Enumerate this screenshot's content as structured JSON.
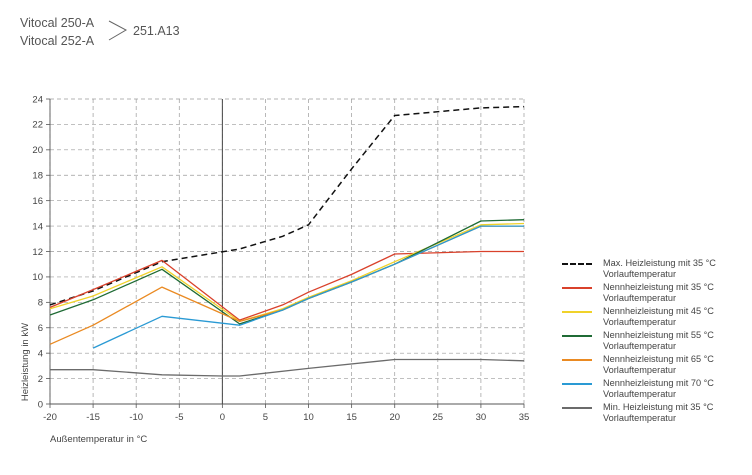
{
  "header": {
    "model_1": "Vitocal 250-A",
    "model_2": "Vitocal 252-A",
    "model_code": "251.A13"
  },
  "chart_data": {
    "type": "line",
    "title": "",
    "xlabel": "Außentemperatur in °C",
    "ylabel": "Heizleistung in kW",
    "xlim": [
      -20,
      35
    ],
    "ylim": [
      0,
      24
    ],
    "x_ticks": [
      -20,
      -15,
      -10,
      -5,
      0,
      5,
      10,
      15,
      20,
      25,
      30,
      35
    ],
    "y_ticks": [
      0,
      2,
      4,
      6,
      8,
      10,
      12,
      14,
      16,
      18,
      20,
      22,
      24
    ],
    "grid": true,
    "legend_position": "right",
    "series": [
      {
        "name": "Max. Heizleistung mit 35 °C Vorlauftemperatur",
        "color": "#111111",
        "style": "dashed",
        "points": [
          [
            -20,
            7.8
          ],
          [
            -15,
            8.9
          ],
          [
            -7,
            11.2
          ],
          [
            2,
            12.2
          ],
          [
            7,
            13.2
          ],
          [
            10,
            14.1
          ],
          [
            15,
            18.5
          ],
          [
            20,
            22.7
          ],
          [
            30,
            23.3
          ],
          [
            35,
            23.4
          ]
        ]
      },
      {
        "name": "Nennheizleistung mit 35 °C Vorlauftemperatur",
        "color": "#d9412b",
        "style": "solid",
        "points": [
          [
            -20,
            7.6
          ],
          [
            -15,
            9.0
          ],
          [
            -7,
            11.3
          ],
          [
            2,
            6.6
          ],
          [
            7,
            7.8
          ],
          [
            10,
            8.8
          ],
          [
            15,
            10.2
          ],
          [
            20,
            11.8
          ],
          [
            30,
            12.0
          ],
          [
            35,
            12.0
          ]
        ]
      },
      {
        "name": "Nennheizleistung mit 45 °C Vorlauftemperatur",
        "color": "#f0d22a",
        "style": "solid",
        "points": [
          [
            -20,
            7.5
          ],
          [
            -15,
            8.5
          ],
          [
            -7,
            10.8
          ],
          [
            2,
            6.5
          ],
          [
            7,
            7.5
          ],
          [
            10,
            8.4
          ],
          [
            15,
            9.7
          ],
          [
            20,
            11.2
          ],
          [
            30,
            14.1
          ],
          [
            35,
            14.2
          ]
        ]
      },
      {
        "name": "Nennheizleistung mit 55 °C Vorlauftemperatur",
        "color": "#1f6b35",
        "style": "solid",
        "points": [
          [
            -20,
            7.0
          ],
          [
            -15,
            8.2
          ],
          [
            -7,
            10.6
          ],
          [
            2,
            6.3
          ],
          [
            7,
            7.4
          ],
          [
            10,
            8.3
          ],
          [
            15,
            9.6
          ],
          [
            20,
            11.0
          ],
          [
            30,
            14.4
          ],
          [
            35,
            14.5
          ]
        ]
      },
      {
        "name": "Nennheizleistung mit 65 °C Vorlauftemperatur",
        "color": "#ea8a22",
        "style": "solid",
        "points": [
          [
            -20,
            4.7
          ],
          [
            -15,
            6.2
          ],
          [
            -7,
            9.2
          ],
          [
            2,
            6.5
          ],
          [
            7,
            7.4
          ],
          [
            10,
            8.3
          ],
          [
            15,
            9.6
          ],
          [
            20,
            11.0
          ],
          [
            30,
            14.0
          ],
          [
            35,
            14.0
          ]
        ]
      },
      {
        "name": "Nennheizleistung mit 70 °C Vorlauftemperatur",
        "color": "#2a9ad4",
        "style": "solid",
        "points": [
          [
            -15,
            4.4
          ],
          [
            -7,
            6.9
          ],
          [
            2,
            6.2
          ],
          [
            7,
            7.4
          ],
          [
            10,
            8.3
          ],
          [
            15,
            9.6
          ],
          [
            20,
            11.0
          ],
          [
            30,
            14.0
          ],
          [
            35,
            14.0
          ]
        ]
      },
      {
        "name": "Min. Heizleistung mit 35 °C Vorlauftemperatur",
        "color": "#6b6b6b",
        "style": "solid",
        "points": [
          [
            -20,
            2.7
          ],
          [
            -15,
            2.7
          ],
          [
            -7,
            2.3
          ],
          [
            0,
            2.2
          ],
          [
            2,
            2.2
          ],
          [
            10,
            2.8
          ],
          [
            20,
            3.5
          ],
          [
            30,
            3.5
          ],
          [
            35,
            3.4
          ]
        ]
      }
    ],
    "legend_labels": [
      {
        "line1": "Max. Heizleistung mit 35 °C",
        "line2": "Vorlauftemperatur"
      },
      {
        "line1": "Nennheizleistung mit 35 °C",
        "line2": "Vorlauftemperatur"
      },
      {
        "line1": "Nennheizleistung mit 45 °C",
        "line2": "Vorlauftemperatur"
      },
      {
        "line1": "Nennheizleistung mit 55 °C",
        "line2": "Vorlauftemperatur"
      },
      {
        "line1": "Nennheizleistung mit 65 °C",
        "line2": "Vorlauftemperatur"
      },
      {
        "line1": "Nennheizleistung mit 70 °C",
        "line2": "Vorlauftemperatur"
      },
      {
        "line1": "Min. Heizleistung mit 35 °C",
        "line2": "Vorlauftemperatur"
      }
    ]
  }
}
